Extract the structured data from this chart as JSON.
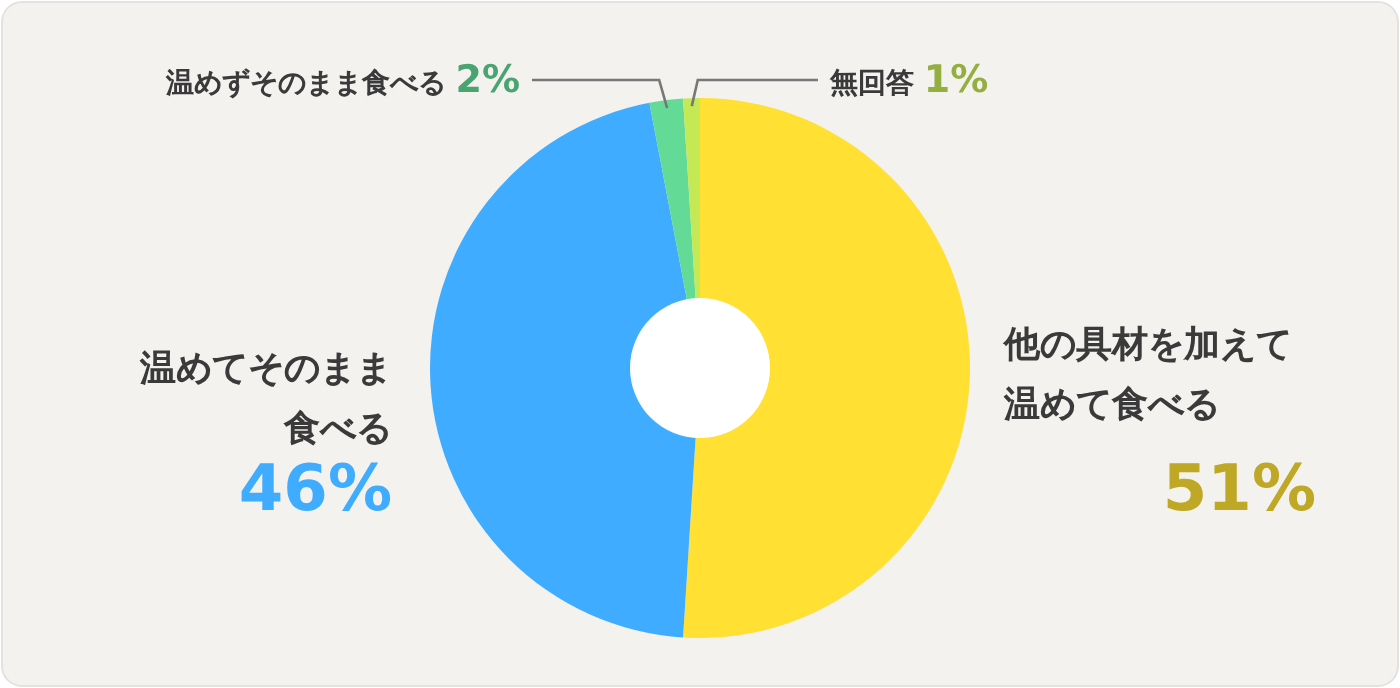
{
  "chart_data": {
    "type": "donut",
    "categories": [
      "他の具材を加えて温めて食べる",
      "温めてそのまま食べる",
      "温めずそのまま食べる",
      "無回答"
    ],
    "values": [
      51,
      46,
      2,
      1
    ],
    "colors": [
      "#ffe033",
      "#40acff",
      "#63db96",
      "#c5e855"
    ],
    "value_labels": [
      "51%",
      "46%",
      "2%",
      "1%"
    ]
  }
}
